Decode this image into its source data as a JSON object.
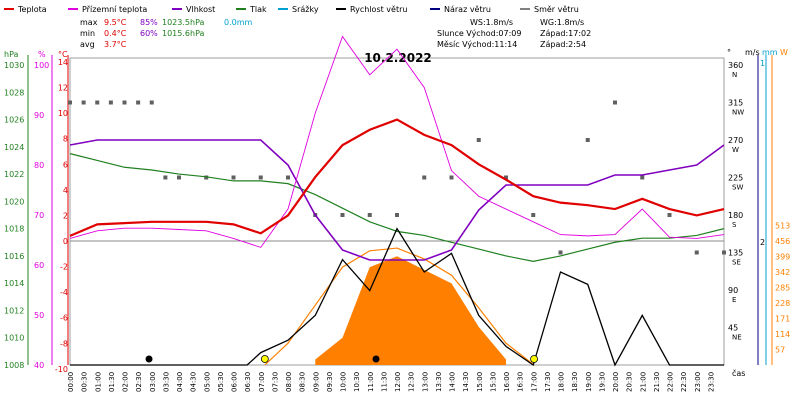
{
  "chart_data": {
    "type": "line",
    "title": "10.2.2022",
    "legend": [
      {
        "name": "Teplota",
        "color": "#e00000"
      },
      {
        "name": "Přízemní teplota",
        "color": "#e000e0"
      },
      {
        "name": "Vlhkost",
        "color": "#8000c0"
      },
      {
        "name": "Tlak",
        "color": "#208020"
      },
      {
        "name": "Srážky",
        "color": "#00a0d0"
      },
      {
        "name": "Rychlost větru",
        "color": "#000000"
      },
      {
        "name": "Náraz větru",
        "color": "#000080"
      },
      {
        "name": "Směr větru",
        "color": "#808080"
      }
    ],
    "stats": {
      "max": {
        "label": "max",
        "temp": "9.5°C",
        "hum": "85%",
        "press": "1023.5hPa",
        "rain": "0.0mm"
      },
      "min": {
        "label": "min",
        "temp": "0.4°C",
        "hum": "60%",
        "press": "1015.6hPa"
      },
      "avg": {
        "label": "avg",
        "temp": "3.7°C"
      }
    },
    "info": {
      "ws": "WS:1.8m/s",
      "wg": "WG:1.8m/s",
      "sun_rise": "Slunce Východ:07:09",
      "sun_set": "Západ:17:02",
      "moon_rise": "Měsíc  Východ:11:14",
      "moon_set": "Západ:2:54"
    },
    "x_label": "čas",
    "x_ticks": [
      "00:00",
      "00:30",
      "01:00",
      "01:30",
      "02:00",
      "02:30",
      "03:00",
      "03:30",
      "04:00",
      "04:30",
      "05:00",
      "05:30",
      "06:00",
      "06:30",
      "07:00",
      "07:30",
      "08:00",
      "08:30",
      "09:00",
      "09:30",
      "10:00",
      "10:30",
      "11:00",
      "11:30",
      "12:00",
      "12:30",
      "13:00",
      "13:30",
      "14:00",
      "14:30",
      "15:00",
      "15:30",
      "16:00",
      "16:30",
      "17:00",
      "17:30",
      "18:00",
      "18:30",
      "19:00",
      "19:30",
      "20:00",
      "20:30",
      "21:00",
      "21:30",
      "22:00",
      "22:30",
      "23:00",
      "23:30"
    ],
    "axes": {
      "hpa": {
        "label": "hPa",
        "ticks": [
          "1030",
          "1028",
          "1026",
          "1024",
          "1022",
          "1020",
          "1018",
          "1016",
          "1014",
          "1012",
          "1010",
          "1008"
        ],
        "range": [
          1008,
          1031
        ]
      },
      "pct": {
        "label": "%",
        "ticks": [
          "100",
          "90",
          "80",
          "70",
          "60",
          "50",
          "40"
        ],
        "range": [
          40,
          105
        ]
      },
      "celsius": {
        "label": "°C",
        "ticks": [
          "14",
          "12",
          "10",
          "8",
          "6",
          "4",
          "2",
          "0",
          "-2",
          "-4",
          "-6",
          "-8",
          "-10"
        ],
        "range": [
          -10,
          15
        ]
      },
      "deg": {
        "label": "°",
        "ticks": [
          "360",
          "315",
          "270",
          "225",
          "180",
          "135",
          "90",
          "45"
        ],
        "dirs": [
          "N",
          "NW",
          "W",
          "SW",
          "S",
          "SE",
          "E",
          "NE"
        ]
      },
      "ms": {
        "label": "m/s",
        "ticks": [
          "1",
          "2"
        ],
        "range": [
          0,
          2
        ]
      },
      "mm": {
        "label": "mm"
      },
      "w": {
        "label": "W",
        "ticks": [
          "513",
          "456",
          "399",
          "342",
          "285",
          "228",
          "171",
          "114",
          "57"
        ],
        "range": [
          0,
          570
        ]
      }
    },
    "temperature": {
      "x": [
        0,
        1,
        2,
        3,
        4,
        5,
        6,
        7,
        8,
        9,
        10,
        11,
        12,
        13,
        14,
        15,
        16,
        17,
        18,
        19,
        20,
        21,
        22,
        23,
        24
      ],
      "y": [
        0.4,
        1.3,
        1.4,
        1.5,
        1.5,
        1.5,
        1.3,
        0.6,
        2.0,
        5.0,
        7.5,
        8.7,
        9.5,
        8.3,
        7.5,
        6.0,
        4.8,
        3.5,
        3.0,
        2.8,
        2.5,
        3.3,
        2.5,
        2.0,
        2.5
      ]
    },
    "ground_temperature": {
      "x": [
        0,
        1,
        2,
        3,
        4,
        5,
        6,
        7,
        8,
        9,
        10,
        11,
        12,
        13,
        14,
        15,
        16,
        17,
        18,
        19,
        20,
        21,
        22,
        23,
        24
      ],
      "y": [
        0.2,
        0.8,
        1.0,
        1.0,
        0.9,
        0.8,
        0.2,
        -0.5,
        2.5,
        10.0,
        16.0,
        13.0,
        15.0,
        12.0,
        5.5,
        3.5,
        2.5,
        1.5,
        0.5,
        0.4,
        0.5,
        2.5,
        0.3,
        0.2,
        0.5
      ]
    },
    "humidity": {
      "x": [
        0,
        1,
        2,
        3,
        4,
        5,
        6,
        7,
        8,
        9,
        10,
        11,
        12,
        13,
        14,
        15,
        16,
        17,
        18,
        19,
        20,
        21,
        22,
        23,
        24
      ],
      "y": [
        84,
        85,
        85,
        85,
        85,
        85,
        85,
        85,
        80,
        70,
        63,
        61,
        61,
        61,
        63,
        71,
        76,
        76,
        76,
        76,
        78,
        78,
        79,
        80,
        84
      ]
    },
    "pressure": {
      "x": [
        0,
        1,
        2,
        3,
        4,
        5,
        6,
        7,
        8,
        9,
        10,
        11,
        12,
        13,
        14,
        15,
        16,
        17,
        18,
        19,
        20,
        21,
        22,
        23,
        24
      ],
      "y": [
        1023.5,
        1023.0,
        1022.5,
        1022.3,
        1022.0,
        1021.8,
        1021.5,
        1021.5,
        1021.3,
        1020.5,
        1019.5,
        1018.5,
        1017.8,
        1017.5,
        1017.0,
        1016.5,
        1016.0,
        1015.6,
        1016.0,
        1016.5,
        1017.0,
        1017.3,
        1017.3,
        1017.5,
        1018.0
      ]
    },
    "wind_speed": {
      "x": [
        0,
        6.5,
        7,
        8,
        9,
        10,
        11,
        12,
        13,
        14,
        15,
        16,
        17,
        18,
        19,
        20,
        21,
        22,
        23,
        24
      ],
      "y": [
        0,
        0,
        0.2,
        0.4,
        0.8,
        1.7,
        1.2,
        2.2,
        1.5,
        1.8,
        0.8,
        0.3,
        0,
        1.5,
        1.3,
        0,
        0.8,
        0,
        0,
        0
      ]
    },
    "wind_dir_samples": {
      "x": [
        0,
        0.5,
        1,
        1.5,
        2,
        2.5,
        3,
        3.5,
        4,
        5,
        6,
        7,
        8,
        9,
        10,
        11,
        12,
        13,
        14,
        15,
        16,
        17,
        18,
        19,
        20,
        21,
        22,
        23,
        24
      ],
      "y": [
        315,
        315,
        315,
        315,
        315,
        315,
        315,
        225,
        225,
        225,
        225,
        225,
        225,
        180,
        180,
        180,
        180,
        225,
        225,
        270,
        225,
        180,
        135,
        270,
        315,
        225,
        180,
        135,
        135
      ]
    },
    "solar": {
      "x": [
        7.15,
        8,
        9,
        10,
        11,
        12,
        13,
        14,
        15,
        16,
        17.03
      ],
      "y": [
        0,
        80,
        220,
        360,
        420,
        430,
        390,
        330,
        210,
        80,
        0
      ]
    },
    "solar_peak_fill": {
      "x": [
        9,
        10,
        11,
        12,
        13,
        14,
        15,
        16
      ],
      "y": [
        20,
        100,
        360,
        400,
        350,
        300,
        140,
        20
      ]
    },
    "markers": {
      "sunrise": "07:09",
      "sunset": "17:02",
      "moonrise": "11:14",
      "moonset": "02:54"
    }
  }
}
